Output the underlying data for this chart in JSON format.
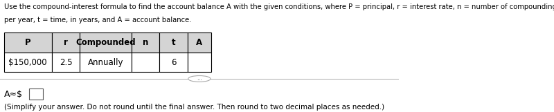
{
  "title_line1": "Use the compound-interest formula to find the account balance A with the given conditions, where P = principal, r = interest rate, n = number of compounding periods",
  "title_line2": "per year, t = time, in years, and A = account balance.",
  "table_headers": [
    "P",
    "r",
    "Compounded",
    "n",
    "t",
    "A"
  ],
  "table_row": [
    "$150,000",
    "2.5",
    "Annually",
    "",
    "6",
    ""
  ],
  "answer_label": "A≈$",
  "footnote": "(Simplify your answer. Do not round until the final answer. Then round to two decimal places as needed.)",
  "bg_color": "#ffffff",
  "text_color": "#000000",
  "table_header_bg": "#d3d3d3",
  "table_border_color": "#000000",
  "dots_button_color": "#ffffff",
  "title_fontsize": 7.2,
  "table_fontsize": 8.5,
  "answer_fontsize": 9,
  "footnote_fontsize": 7.5
}
